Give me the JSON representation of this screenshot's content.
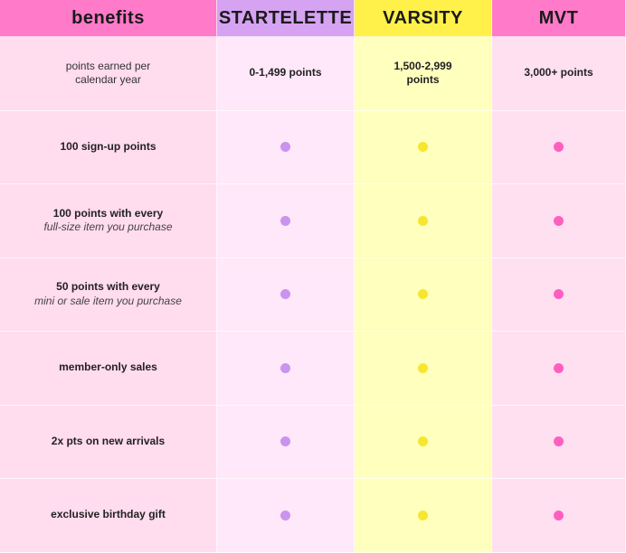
{
  "header": {
    "benefits": "benefits",
    "startelette": "STARTELETTE",
    "varsity": "VARSITY",
    "mvt": "MVT"
  },
  "colors": {
    "startelette": "#c894ee",
    "varsity": "#f6e62e",
    "mvt": "#ff5fbf"
  },
  "points_row": {
    "label_line1": "points earned per",
    "label_line2": "calendar year",
    "startelette": "0-1,499 points",
    "varsity_line1": "1,500-2,999",
    "varsity_line2": "points",
    "mvt": "3,000+ points"
  },
  "rows": [
    {
      "main": "100 sign-up points",
      "sub": "",
      "startelette": true,
      "varsity": true,
      "mvt": true
    },
    {
      "main": "100 points with every",
      "sub": "full-size item you purchase",
      "startelette": true,
      "varsity": true,
      "mvt": true
    },
    {
      "main": "50 points with every",
      "sub": "mini or sale item you purchase",
      "startelette": true,
      "varsity": true,
      "mvt": true
    },
    {
      "main": "member-only sales",
      "sub": "",
      "startelette": true,
      "varsity": true,
      "mvt": true
    },
    {
      "main": "2x pts on new arrivals",
      "sub": "",
      "startelette": true,
      "varsity": true,
      "mvt": true
    },
    {
      "main": "exclusive birthday gift",
      "sub": "",
      "startelette": true,
      "varsity": true,
      "mvt": true
    }
  ]
}
